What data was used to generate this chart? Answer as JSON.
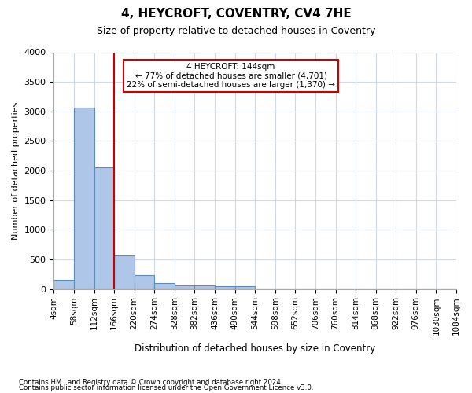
{
  "title": "4, HEYCROFT, COVENTRY, CV4 7HE",
  "subtitle": "Size of property relative to detached houses in Coventry",
  "xlabel": "Distribution of detached houses by size in Coventry",
  "ylabel": "Number of detached properties",
  "footer_line1": "Contains HM Land Registry data © Crown copyright and database right 2024.",
  "footer_line2": "Contains public sector information licensed under the Open Government Licence v3.0.",
  "bins": [
    "4sqm",
    "58sqm",
    "112sqm",
    "166sqm",
    "220sqm",
    "274sqm",
    "328sqm",
    "382sqm",
    "436sqm",
    "490sqm",
    "544sqm",
    "598sqm",
    "652sqm",
    "706sqm",
    "760sqm",
    "814sqm",
    "868sqm",
    "922sqm",
    "976sqm",
    "1030sqm",
    "1084sqm"
  ],
  "bar_values": [
    150,
    3060,
    2060,
    560,
    230,
    100,
    65,
    55,
    50,
    50,
    0,
    0,
    0,
    0,
    0,
    0,
    0,
    0,
    0,
    0
  ],
  "bar_color": "#aec6e8",
  "bar_edge_color": "#5b8db8",
  "grid_color": "#d0d8e8",
  "vline_x": 3,
  "vline_color": "#cc0000",
  "annotation_text": "4 HEYCROFT: 144sqm\n← 77% of detached houses are smaller (4,701)\n22% of semi-detached houses are larger (1,370) →",
  "annotation_box_color": "#ffffff",
  "annotation_box_edge_color": "#cc0000",
  "ylim": [
    0,
    4000
  ],
  "yticks": [
    0,
    500,
    1000,
    1500,
    2000,
    2500,
    3000,
    3500,
    4000
  ]
}
